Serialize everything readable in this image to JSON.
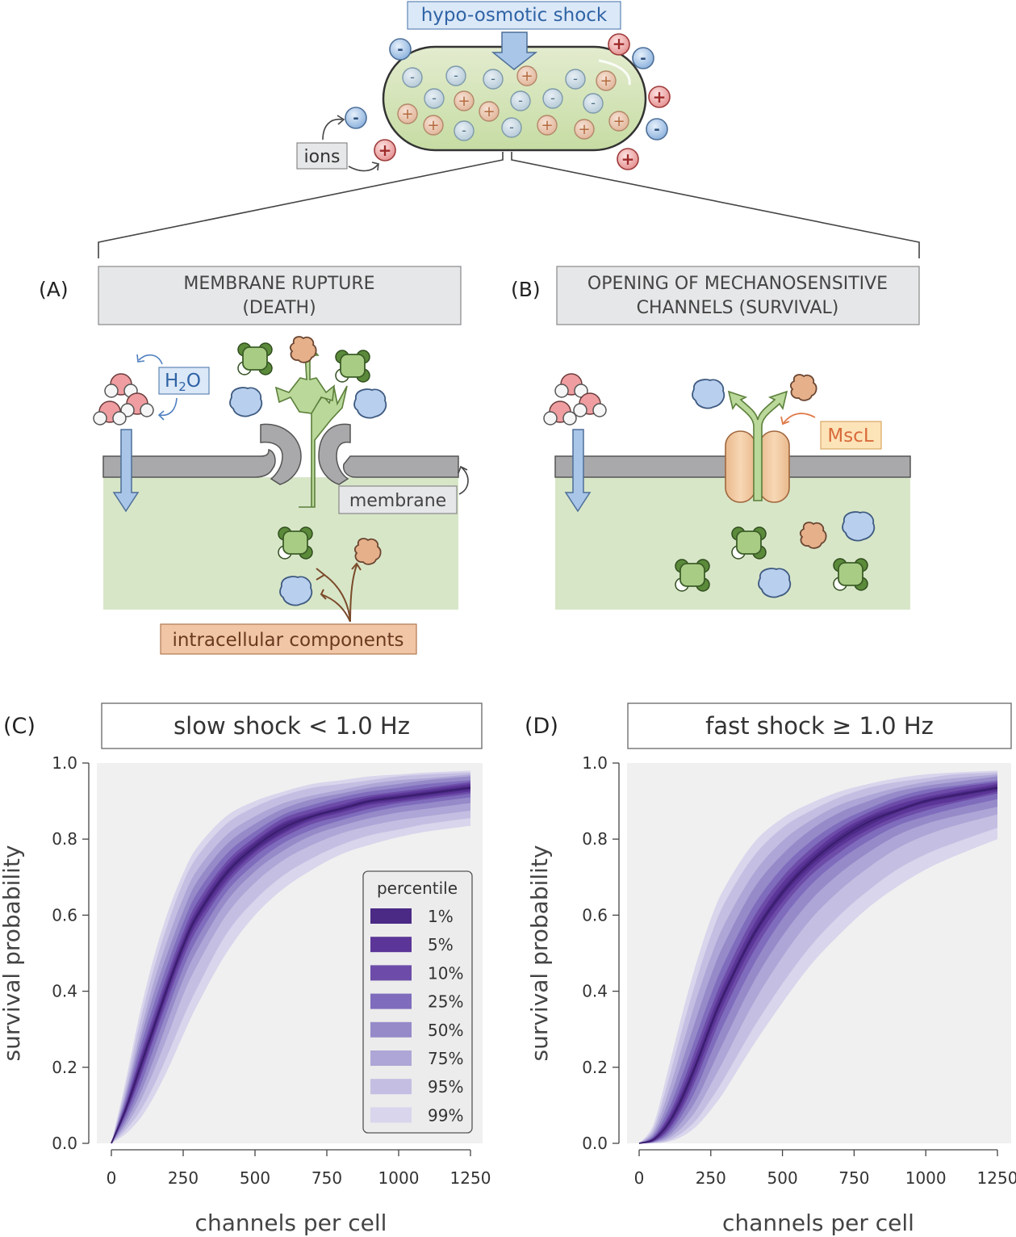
{
  "top": {
    "shock_label": "hypo-osmotic shock",
    "ions_label": "ions",
    "minus": "-",
    "plus": "+"
  },
  "panelA": {
    "letter": "(A)",
    "title_line1": "MEMBRANE RUPTURE",
    "title_line2": "(DEATH)",
    "h2o_h": "H",
    "h2o_sub": "2",
    "h2o_o": "O",
    "membrane_label": "membrane",
    "components_label": "intracellular components"
  },
  "panelB": {
    "letter": "(B)",
    "title_line1": "OPENING OF MECHANOSENSITIVE",
    "title_line2": "CHANNELS (SURVIVAL)",
    "mscl_label": "MscL"
  },
  "colors": {
    "cytoplasm": "#d8e6c8",
    "membrane": "#a9a9ab",
    "arrow_blue": "#a9c6e8",
    "arrow_green": "#b9d89a",
    "mscl": "#f3cfa6",
    "box_gray": "#e6e7e8",
    "band_dark": "#4b2a86",
    "plot_bg": "#f0f0f0"
  },
  "chart_data": [
    {
      "type": "area",
      "panel": "(C)",
      "title": "slow shock  <  1.0 Hz",
      "xlabel": "channels per cell",
      "ylabel": "survival probability",
      "xlim": [
        0,
        1250
      ],
      "ylim": [
        0,
        1.0
      ],
      "xticks": [
        "0",
        "250",
        "500",
        "750",
        "1000",
        "1250"
      ],
      "yticks": [
        "0.0",
        "0.2",
        "0.4",
        "0.6",
        "0.8",
        "1.0"
      ],
      "x": [
        0,
        50,
        100,
        150,
        200,
        250,
        300,
        400,
        500,
        600,
        700,
        800,
        900,
        1000,
        1100,
        1250
      ],
      "median": [
        0.0,
        0.09,
        0.2,
        0.31,
        0.42,
        0.52,
        0.6,
        0.71,
        0.78,
        0.83,
        0.86,
        0.88,
        0.9,
        0.91,
        0.92,
        0.935
      ],
      "legend_title": "percentile",
      "legend_position": "lower-right",
      "series": [
        {
          "name": "1%",
          "color": "#4b2a86",
          "lower": [
            0.0,
            0.085,
            0.19,
            0.3,
            0.41,
            0.51,
            0.59,
            0.7,
            0.77,
            0.82,
            0.855,
            0.875,
            0.895,
            0.905,
            0.915,
            0.93
          ],
          "upper": [
            0.0,
            0.095,
            0.21,
            0.32,
            0.43,
            0.53,
            0.61,
            0.72,
            0.79,
            0.84,
            0.865,
            0.885,
            0.905,
            0.915,
            0.925,
            0.94
          ]
        },
        {
          "name": "5%",
          "color": "#5b3597",
          "lower": [
            0.0,
            0.08,
            0.18,
            0.29,
            0.4,
            0.5,
            0.58,
            0.69,
            0.765,
            0.815,
            0.85,
            0.87,
            0.89,
            0.9,
            0.91,
            0.925
          ],
          "upper": [
            0.0,
            0.1,
            0.22,
            0.33,
            0.44,
            0.54,
            0.62,
            0.73,
            0.795,
            0.845,
            0.87,
            0.89,
            0.91,
            0.92,
            0.93,
            0.945
          ]
        },
        {
          "name": "10%",
          "color": "#6c4ca8",
          "lower": [
            0.0,
            0.075,
            0.17,
            0.28,
            0.385,
            0.485,
            0.565,
            0.68,
            0.755,
            0.805,
            0.84,
            0.86,
            0.88,
            0.895,
            0.905,
            0.92
          ],
          "upper": [
            0.0,
            0.105,
            0.23,
            0.345,
            0.455,
            0.555,
            0.635,
            0.74,
            0.805,
            0.855,
            0.88,
            0.9,
            0.915,
            0.925,
            0.935,
            0.95
          ]
        },
        {
          "name": "25%",
          "color": "#7f6cbc",
          "lower": [
            0.0,
            0.065,
            0.15,
            0.255,
            0.36,
            0.46,
            0.54,
            0.66,
            0.735,
            0.79,
            0.825,
            0.85,
            0.87,
            0.885,
            0.895,
            0.91
          ],
          "upper": [
            0.0,
            0.115,
            0.25,
            0.37,
            0.48,
            0.58,
            0.66,
            0.76,
            0.82,
            0.865,
            0.89,
            0.91,
            0.925,
            0.935,
            0.945,
            0.955
          ]
        },
        {
          "name": "50%",
          "color": "#968ac9",
          "lower": [
            0.0,
            0.055,
            0.13,
            0.225,
            0.33,
            0.43,
            0.51,
            0.635,
            0.715,
            0.77,
            0.81,
            0.835,
            0.855,
            0.87,
            0.88,
            0.895
          ],
          "upper": [
            0.0,
            0.125,
            0.27,
            0.4,
            0.51,
            0.61,
            0.69,
            0.785,
            0.84,
            0.88,
            0.905,
            0.92,
            0.935,
            0.945,
            0.955,
            0.965
          ]
        },
        {
          "name": "75%",
          "color": "#aea6d6",
          "lower": [
            0.0,
            0.045,
            0.11,
            0.195,
            0.29,
            0.39,
            0.47,
            0.6,
            0.685,
            0.745,
            0.785,
            0.815,
            0.835,
            0.85,
            0.86,
            0.875
          ],
          "upper": [
            0.0,
            0.135,
            0.29,
            0.43,
            0.545,
            0.645,
            0.72,
            0.81,
            0.86,
            0.895,
            0.915,
            0.93,
            0.945,
            0.955,
            0.96,
            0.97
          ]
        },
        {
          "name": "95%",
          "color": "#c4bfe2",
          "lower": [
            0.0,
            0.035,
            0.085,
            0.155,
            0.24,
            0.33,
            0.41,
            0.55,
            0.64,
            0.705,
            0.75,
            0.785,
            0.81,
            0.825,
            0.84,
            0.855
          ],
          "upper": [
            0.0,
            0.15,
            0.32,
            0.465,
            0.585,
            0.685,
            0.755,
            0.84,
            0.885,
            0.915,
            0.935,
            0.945,
            0.955,
            0.965,
            0.97,
            0.975
          ]
        },
        {
          "name": "99%",
          "color": "#d8d5ec",
          "lower": [
            0.0,
            0.025,
            0.065,
            0.125,
            0.2,
            0.285,
            0.365,
            0.5,
            0.6,
            0.67,
            0.72,
            0.76,
            0.785,
            0.805,
            0.82,
            0.835
          ],
          "upper": [
            0.0,
            0.165,
            0.345,
            0.495,
            0.615,
            0.71,
            0.78,
            0.86,
            0.9,
            0.925,
            0.945,
            0.955,
            0.965,
            0.97,
            0.975,
            0.98
          ]
        }
      ]
    },
    {
      "type": "area",
      "panel": "(D)",
      "title": "fast shock  ≥  1.0 Hz",
      "xlabel": "channels per cell",
      "ylabel": "survival probability",
      "xlim": [
        0,
        1250
      ],
      "ylim": [
        0,
        1.0
      ],
      "xticks": [
        "0",
        "250",
        "500",
        "750",
        "1000",
        "1250"
      ],
      "yticks": [
        "0.0",
        "0.2",
        "0.4",
        "0.6",
        "0.8",
        "1.0"
      ],
      "x": [
        0,
        50,
        100,
        150,
        200,
        250,
        300,
        400,
        500,
        600,
        700,
        800,
        900,
        1000,
        1100,
        1250
      ],
      "median": [
        0.0,
        0.01,
        0.05,
        0.12,
        0.21,
        0.31,
        0.4,
        0.55,
        0.66,
        0.74,
        0.8,
        0.845,
        0.875,
        0.9,
        0.915,
        0.935
      ],
      "series": [
        {
          "name": "1%",
          "color": "#4b2a86",
          "lower": [
            0.0,
            0.008,
            0.045,
            0.11,
            0.2,
            0.3,
            0.39,
            0.54,
            0.65,
            0.73,
            0.79,
            0.835,
            0.87,
            0.895,
            0.91,
            0.93
          ],
          "upper": [
            0.0,
            0.012,
            0.055,
            0.13,
            0.22,
            0.32,
            0.41,
            0.56,
            0.67,
            0.75,
            0.81,
            0.855,
            0.88,
            0.905,
            0.92,
            0.94
          ]
        },
        {
          "name": "5%",
          "color": "#5b3597",
          "lower": [
            0.0,
            0.006,
            0.038,
            0.1,
            0.185,
            0.285,
            0.375,
            0.525,
            0.635,
            0.72,
            0.78,
            0.825,
            0.86,
            0.885,
            0.9,
            0.925
          ],
          "upper": [
            0.0,
            0.014,
            0.063,
            0.14,
            0.235,
            0.335,
            0.425,
            0.575,
            0.685,
            0.76,
            0.82,
            0.86,
            0.89,
            0.91,
            0.925,
            0.945
          ]
        },
        {
          "name": "10%",
          "color": "#6c4ca8",
          "lower": [
            0.0,
            0.005,
            0.032,
            0.09,
            0.17,
            0.265,
            0.355,
            0.505,
            0.62,
            0.705,
            0.765,
            0.815,
            0.85,
            0.875,
            0.895,
            0.92
          ],
          "upper": [
            0.0,
            0.016,
            0.07,
            0.155,
            0.255,
            0.355,
            0.445,
            0.595,
            0.7,
            0.775,
            0.83,
            0.87,
            0.9,
            0.92,
            0.935,
            0.95
          ]
        },
        {
          "name": "25%",
          "color": "#7f6cbc",
          "lower": [
            0.0,
            0.004,
            0.025,
            0.075,
            0.145,
            0.235,
            0.32,
            0.47,
            0.59,
            0.68,
            0.745,
            0.795,
            0.835,
            0.86,
            0.88,
            0.905
          ],
          "upper": [
            0.0,
            0.02,
            0.085,
            0.18,
            0.285,
            0.39,
            0.48,
            0.625,
            0.725,
            0.795,
            0.845,
            0.88,
            0.91,
            0.93,
            0.94,
            0.955
          ]
        },
        {
          "name": "50%",
          "color": "#968ac9",
          "lower": [
            0.0,
            0.003,
            0.018,
            0.058,
            0.115,
            0.195,
            0.275,
            0.425,
            0.545,
            0.64,
            0.71,
            0.765,
            0.81,
            0.84,
            0.86,
            0.885
          ],
          "upper": [
            0.0,
            0.025,
            0.105,
            0.215,
            0.33,
            0.44,
            0.53,
            0.67,
            0.76,
            0.825,
            0.87,
            0.9,
            0.925,
            0.94,
            0.95,
            0.965
          ]
        },
        {
          "name": "75%",
          "color": "#aea6d6",
          "lower": [
            0.0,
            0.002,
            0.012,
            0.042,
            0.088,
            0.155,
            0.225,
            0.37,
            0.49,
            0.59,
            0.665,
            0.725,
            0.775,
            0.81,
            0.835,
            0.865
          ],
          "upper": [
            0.0,
            0.032,
            0.13,
            0.255,
            0.38,
            0.49,
            0.58,
            0.71,
            0.795,
            0.85,
            0.89,
            0.915,
            0.935,
            0.95,
            0.96,
            0.97
          ]
        },
        {
          "name": "95%",
          "color": "#c4bfe2",
          "lower": [
            0.0,
            0.001,
            0.007,
            0.028,
            0.062,
            0.115,
            0.175,
            0.305,
            0.42,
            0.52,
            0.6,
            0.665,
            0.72,
            0.76,
            0.79,
            0.83
          ],
          "upper": [
            0.0,
            0.04,
            0.16,
            0.3,
            0.43,
            0.545,
            0.635,
            0.755,
            0.83,
            0.875,
            0.91,
            0.935,
            0.95,
            0.96,
            0.97,
            0.975
          ]
        },
        {
          "name": "99%",
          "color": "#d8d5ec",
          "lower": [
            0.0,
            0.0,
            0.004,
            0.018,
            0.045,
            0.088,
            0.14,
            0.26,
            0.37,
            0.47,
            0.55,
            0.62,
            0.675,
            0.72,
            0.755,
            0.8
          ],
          "upper": [
            0.0,
            0.05,
            0.19,
            0.34,
            0.475,
            0.59,
            0.675,
            0.79,
            0.855,
            0.895,
            0.925,
            0.945,
            0.96,
            0.97,
            0.975,
            0.98
          ]
        }
      ]
    }
  ]
}
